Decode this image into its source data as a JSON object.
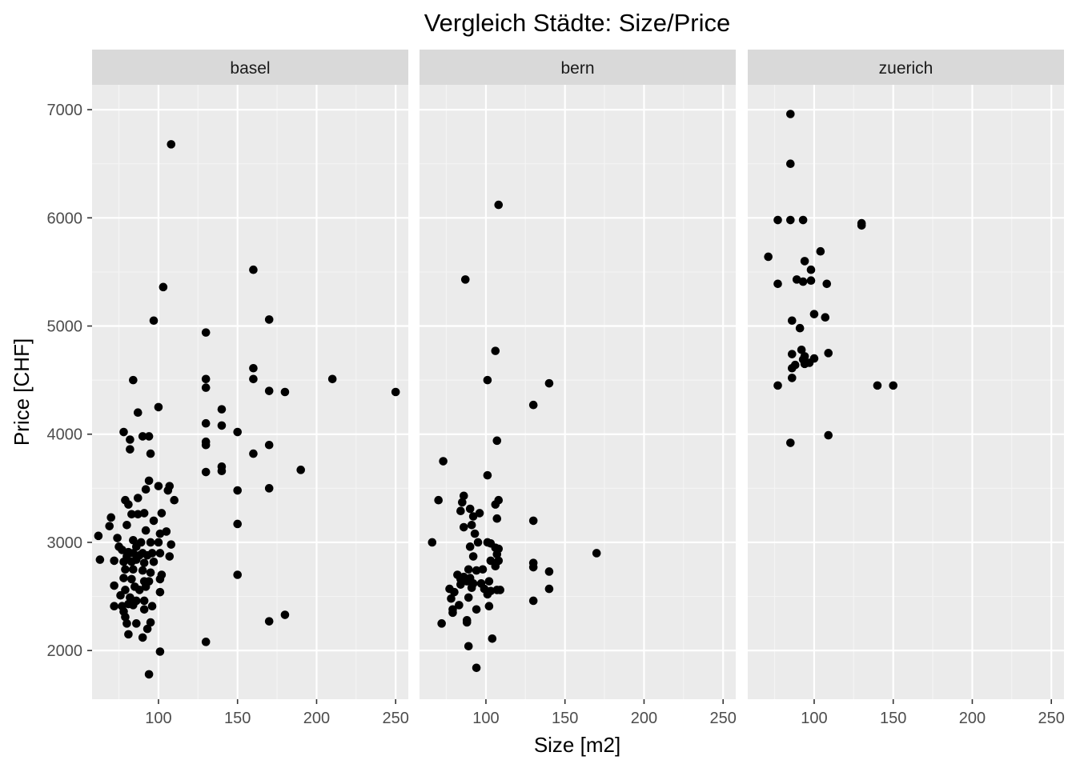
{
  "chart_data": {
    "type": "scatter",
    "title": "Vergleich Städte: Size/Price",
    "xlabel": "Size [m2]",
    "ylabel": "Price [CHF]",
    "xlim": [
      58,
      258
    ],
    "ylim": [
      1550,
      7230
    ],
    "x_ticks": [
      100,
      150,
      200,
      250
    ],
    "y_ticks": [
      2000,
      3000,
      4000,
      5000,
      6000,
      7000
    ],
    "grid": true,
    "point_color": "#000000",
    "panel_background": "#ebebeb",
    "strip_background": "#d9d9d9",
    "facets": [
      {
        "label": "basel",
        "points": [
          [
            108,
            6680
          ],
          [
            103,
            5360
          ],
          [
            97,
            5050
          ],
          [
            84,
            4500
          ],
          [
            87,
            4200
          ],
          [
            100,
            4250
          ],
          [
            78,
            4020
          ],
          [
            82,
            3950
          ],
          [
            90,
            3980
          ],
          [
            94,
            3980
          ],
          [
            82,
            3860
          ],
          [
            95,
            3820
          ],
          [
            94,
            3570
          ],
          [
            100,
            3520
          ],
          [
            107,
            3520
          ],
          [
            106,
            3480
          ],
          [
            92,
            3490
          ],
          [
            110,
            3390
          ],
          [
            79,
            3390
          ],
          [
            87,
            3410
          ],
          [
            81,
            3350
          ],
          [
            83,
            3260
          ],
          [
            87,
            3260
          ],
          [
            91,
            3270
          ],
          [
            102,
            3270
          ],
          [
            70,
            3230
          ],
          [
            97,
            3200
          ],
          [
            69,
            3150
          ],
          [
            80,
            3160
          ],
          [
            92,
            3110
          ],
          [
            105,
            3100
          ],
          [
            101,
            3080
          ],
          [
            62,
            3060
          ],
          [
            74,
            3040
          ],
          [
            95,
            3000
          ],
          [
            84,
            3020
          ],
          [
            89,
            3000
          ],
          [
            100,
            3000
          ],
          [
            108,
            2980
          ],
          [
            75,
            2960
          ],
          [
            86,
            2960
          ],
          [
            77,
            2930
          ],
          [
            81,
            2910
          ],
          [
            84,
            2900
          ],
          [
            90,
            2900
          ],
          [
            96,
            2900
          ],
          [
            101,
            2900
          ],
          [
            80,
            2870
          ],
          [
            88,
            2880
          ],
          [
            93,
            2880
          ],
          [
            107,
            2870
          ],
          [
            63,
            2840
          ],
          [
            72,
            2830
          ],
          [
            78,
            2820
          ],
          [
            83,
            2820
          ],
          [
            86,
            2840
          ],
          [
            91,
            2810
          ],
          [
            97,
            2820
          ],
          [
            79,
            2750
          ],
          [
            84,
            2750
          ],
          [
            90,
            2740
          ],
          [
            95,
            2720
          ],
          [
            102,
            2700
          ],
          [
            78,
            2670
          ],
          [
            83,
            2660
          ],
          [
            91,
            2640
          ],
          [
            94,
            2640
          ],
          [
            101,
            2660
          ],
          [
            72,
            2600
          ],
          [
            85,
            2590
          ],
          [
            92,
            2590
          ],
          [
            79,
            2560
          ],
          [
            88,
            2560
          ],
          [
            101,
            2540
          ],
          [
            76,
            2510
          ],
          [
            82,
            2490
          ],
          [
            86,
            2460
          ],
          [
            91,
            2460
          ],
          [
            81,
            2430
          ],
          [
            84,
            2420
          ],
          [
            96,
            2410
          ],
          [
            72,
            2410
          ],
          [
            77,
            2410
          ],
          [
            78,
            2360
          ],
          [
            91,
            2380
          ],
          [
            79,
            2310
          ],
          [
            86,
            2250
          ],
          [
            80,
            2250
          ],
          [
            95,
            2260
          ],
          [
            93,
            2200
          ],
          [
            81,
            2150
          ],
          [
            90,
            2120
          ],
          [
            101,
            1990
          ],
          [
            94,
            1780
          ],
          [
            130,
            4940
          ],
          [
            130,
            4510
          ],
          [
            130,
            4430
          ],
          [
            130,
            4100
          ],
          [
            130,
            3930
          ],
          [
            130,
            3900
          ],
          [
            130,
            3650
          ],
          [
            140,
            4230
          ],
          [
            140,
            4080
          ],
          [
            140,
            3700
          ],
          [
            140,
            3660
          ],
          [
            150,
            4020
          ],
          [
            150,
            3480
          ],
          [
            150,
            3170
          ],
          [
            150,
            2700
          ],
          [
            160,
            5520
          ],
          [
            160,
            4610
          ],
          [
            160,
            4510
          ],
          [
            160,
            3820
          ],
          [
            170,
            5060
          ],
          [
            170,
            4400
          ],
          [
            170,
            3900
          ],
          [
            170,
            3500
          ],
          [
            170,
            2270
          ],
          [
            180,
            4390
          ],
          [
            180,
            2330
          ],
          [
            190,
            3670
          ],
          [
            210,
            4510
          ],
          [
            250,
            4390
          ],
          [
            130,
            2080
          ]
        ]
      },
      {
        "label": "bern",
        "points": [
          [
            108,
            6120
          ],
          [
            87,
            5430
          ],
          [
            106,
            4770
          ],
          [
            101,
            4500
          ],
          [
            140,
            4470
          ],
          [
            130,
            4270
          ],
          [
            107,
            3940
          ],
          [
            73,
            3750
          ],
          [
            101,
            3620
          ],
          [
            86,
            3430
          ],
          [
            70,
            3390
          ],
          [
            108,
            3390
          ],
          [
            85,
            3370
          ],
          [
            106,
            3350
          ],
          [
            84,
            3290
          ],
          [
            96,
            3270
          ],
          [
            90,
            3310
          ],
          [
            92,
            3240
          ],
          [
            107,
            3220
          ],
          [
            130,
            3200
          ],
          [
            86,
            3140
          ],
          [
            91,
            3160
          ],
          [
            93,
            3080
          ],
          [
            66,
            3000
          ],
          [
            95,
            3000
          ],
          [
            101,
            3000
          ],
          [
            103,
            2990
          ],
          [
            90,
            2960
          ],
          [
            106,
            2950
          ],
          [
            108,
            2940
          ],
          [
            107,
            2890
          ],
          [
            92,
            2870
          ],
          [
            170,
            2900
          ],
          [
            103,
            2830
          ],
          [
            108,
            2830
          ],
          [
            130,
            2810
          ],
          [
            130,
            2770
          ],
          [
            106,
            2780
          ],
          [
            89,
            2750
          ],
          [
            94,
            2740
          ],
          [
            98,
            2750
          ],
          [
            140,
            2730
          ],
          [
            82,
            2700
          ],
          [
            86,
            2680
          ],
          [
            84,
            2660
          ],
          [
            90,
            2670
          ],
          [
            88,
            2640
          ],
          [
            92,
            2620
          ],
          [
            97,
            2620
          ],
          [
            102,
            2640
          ],
          [
            84,
            2610
          ],
          [
            91,
            2580
          ],
          [
            99,
            2570
          ],
          [
            103,
            2550
          ],
          [
            107,
            2560
          ],
          [
            109,
            2560
          ],
          [
            140,
            2570
          ],
          [
            77,
            2570
          ],
          [
            80,
            2540
          ],
          [
            78,
            2480
          ],
          [
            89,
            2490
          ],
          [
            101,
            2520
          ],
          [
            130,
            2460
          ],
          [
            102,
            2410
          ],
          [
            83,
            2420
          ],
          [
            94,
            2380
          ],
          [
            79,
            2380
          ],
          [
            79,
            2350
          ],
          [
            88,
            2280
          ],
          [
            72,
            2250
          ],
          [
            88,
            2260
          ],
          [
            104,
            2110
          ],
          [
            89,
            2040
          ],
          [
            94,
            1840
          ]
        ]
      },
      {
        "label": "zuerich",
        "points": [
          [
            85,
            6960
          ],
          [
            85,
            6500
          ],
          [
            77,
            5980
          ],
          [
            85,
            5980
          ],
          [
            93,
            5980
          ],
          [
            130,
            5950
          ],
          [
            130,
            5930
          ],
          [
            104,
            5690
          ],
          [
            71,
            5640
          ],
          [
            94,
            5600
          ],
          [
            98,
            5520
          ],
          [
            89,
            5430
          ],
          [
            93,
            5410
          ],
          [
            98,
            5420
          ],
          [
            77,
            5390
          ],
          [
            108,
            5390
          ],
          [
            100,
            5110
          ],
          [
            107,
            5080
          ],
          [
            86,
            5050
          ],
          [
            91,
            4980
          ],
          [
            92,
            4780
          ],
          [
            86,
            4740
          ],
          [
            94,
            4720
          ],
          [
            100,
            4700
          ],
          [
            109,
            4750
          ],
          [
            93,
            4690
          ],
          [
            94,
            4650
          ],
          [
            97,
            4660
          ],
          [
            86,
            4610
          ],
          [
            88,
            4640
          ],
          [
            86,
            4520
          ],
          [
            77,
            4450
          ],
          [
            140,
            4450
          ],
          [
            150,
            4450
          ],
          [
            109,
            3990
          ],
          [
            85,
            3920
          ]
        ]
      }
    ]
  }
}
